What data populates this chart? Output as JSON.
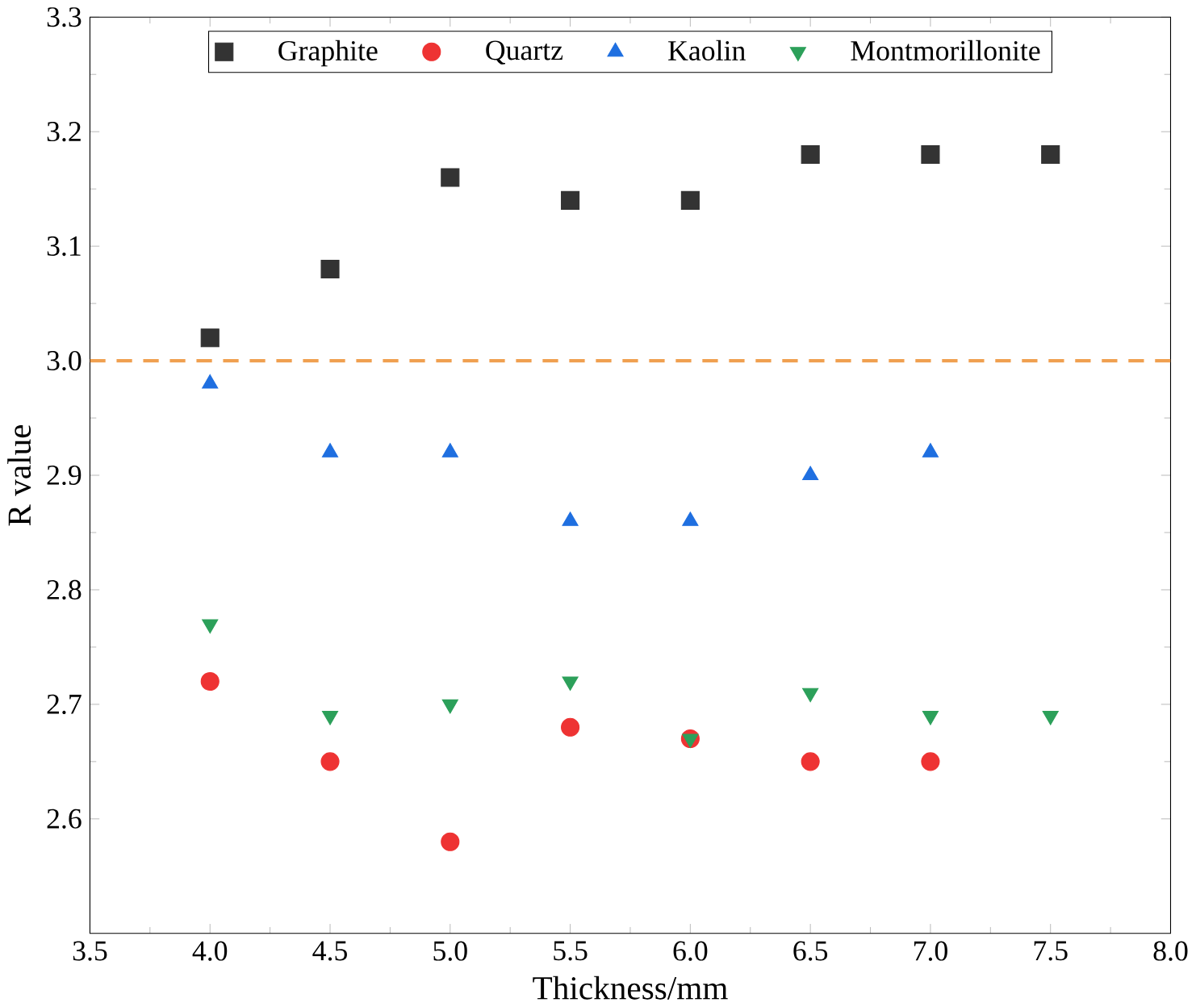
{
  "chart_data": {
    "type": "scatter",
    "xlabel": "Thickness/mm",
    "ylabel": "R value",
    "xlim": [
      3.5,
      8.0
    ],
    "xticks": [
      3.5,
      {
        "value": 4.0,
        "label": "4.0"
      },
      4.5,
      {
        "value": 5.0,
        "label": "5.0"
      },
      5.5,
      {
        "value": 6.0,
        "label": "6.0"
      },
      6.5,
      {
        "value": 7.0,
        "label": "7.0"
      },
      7.5,
      {
        "value": 8.0,
        "label": "8.0"
      }
    ],
    "ylim": [
      2.5,
      3.3
    ],
    "yticks": [
      2.6,
      2.7,
      2.8,
      2.9,
      {
        "value": 3.0,
        "label": "3.0"
      },
      3.1,
      3.2,
      3.3
    ],
    "grid": false,
    "legend": "top",
    "series": [
      {
        "name": "Graphite",
        "color": "#333333",
        "marker": "square",
        "x": [
          4.0,
          4.5,
          5.0,
          5.5,
          6.0,
          6.5,
          7.0,
          7.5
        ],
        "values": [
          3.02,
          3.08,
          3.16,
          3.14,
          3.14,
          3.18,
          3.18,
          3.18
        ]
      },
      {
        "name": "Quartz",
        "color": "#ee3333",
        "marker": "circle",
        "x": [
          4.0,
          4.5,
          5.0,
          5.5,
          6.0,
          6.5,
          7.0
        ],
        "values": [
          2.72,
          2.65,
          2.58,
          2.68,
          2.67,
          2.65,
          2.65
        ]
      },
      {
        "name": "Kaolin",
        "color": "#1f6fe0",
        "marker": "triangle",
        "x": [
          4.0,
          4.5,
          5.0,
          5.5,
          6.0,
          6.5,
          7.0
        ],
        "values": [
          2.98,
          2.92,
          2.92,
          2.86,
          2.86,
          2.9,
          2.92
        ]
      },
      {
        "name": "Montmorillonite",
        "color": "#2ca05a",
        "marker": "triangle-down",
        "x": [
          4.0,
          4.5,
          5.0,
          5.5,
          6.0,
          6.5,
          7.0,
          7.5
        ],
        "values": [
          2.77,
          2.69,
          2.7,
          2.72,
          2.67,
          2.71,
          2.69,
          2.69
        ]
      }
    ],
    "ref_lines": [
      {
        "axis": "y",
        "value": 3.0,
        "color": "#f0a050",
        "line_style": "dashed"
      }
    ]
  }
}
